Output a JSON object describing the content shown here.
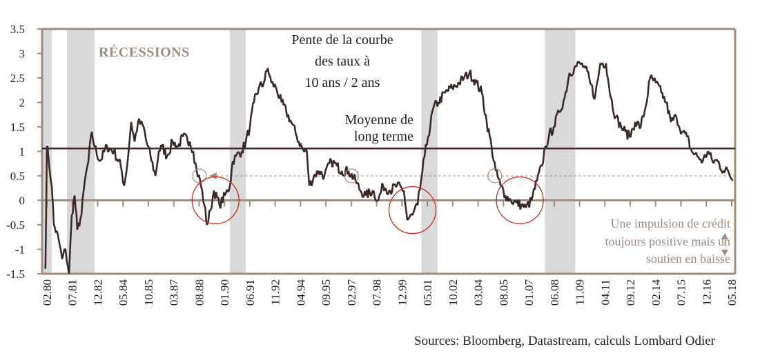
{
  "chart_data": {
    "type": "line",
    "title": "Pente de la courbe des taux à 10 ans / 2 ans",
    "title_lines": [
      "Pente de la courbe",
      "des taux à",
      "10 ans / 2 ans"
    ],
    "recession_label": "RÉCESSIONS",
    "mean_label_lines": [
      "Moyenne de",
      "long terme"
    ],
    "mean_value": 1.06,
    "reference_level": 0.5,
    "annotation_lines": [
      "Une impulsion de crédit",
      "toujours positive mais un",
      "soutien en baisse"
    ],
    "source": "Sources: Bloomberg, Datastream, calculs Lombard Odier",
    "ylim": [
      -1.5,
      3.5
    ],
    "xlim": [
      1979.8,
      2018.45
    ],
    "y_ticks": [
      "3.5",
      "3",
      "2.5",
      "2",
      "1.5",
      "1",
      "0.5",
      "0",
      "-0.5",
      "-1",
      "-1.5"
    ],
    "x_ticks": [
      "02.80",
      "07.81",
      "12.82",
      "05.84",
      "10.85",
      "03.87",
      "08.88",
      "01.90",
      "06.91",
      "11.92",
      "04.94",
      "09.95",
      "02.97",
      "07.98",
      "12.99",
      "05.01",
      "10.02",
      "03.04",
      "08.05",
      "01.07",
      "06.08",
      "11.09",
      "04.11",
      "09.12",
      "02.14",
      "07.15",
      "12.16",
      "05.18"
    ],
    "recessions": [
      [
        1979.8,
        1980.35
      ],
      [
        1981.2,
        1982.75
      ],
      [
        1990.3,
        1991.2
      ],
      [
        2001.0,
        2001.9
      ],
      [
        2007.9,
        2009.6
      ]
    ],
    "highlight_points": [
      1988.6,
      1997.1,
      2005.1
    ],
    "highlight_troughs": [
      [
        1989.5,
        0.0
      ],
      [
        2000.5,
        -0.2
      ],
      [
        2006.5,
        0.0
      ]
    ],
    "series": [
      {
        "name": "Pente 10 ans / 2 ans",
        "color": "#3a2a28",
        "points": [
          [
            1980.0,
            -1.4
          ],
          [
            1980.08,
            1.1
          ],
          [
            1980.16,
            0.9
          ],
          [
            1980.35,
            0.3
          ],
          [
            1980.47,
            -0.5
          ],
          [
            1980.74,
            -0.8
          ],
          [
            1980.93,
            -1.2
          ],
          [
            1981.12,
            -1.0
          ],
          [
            1981.32,
            -1.5
          ],
          [
            1981.47,
            -0.3
          ],
          [
            1981.63,
            0.1
          ],
          [
            1981.78,
            -0.6
          ],
          [
            1982.01,
            -0.3
          ],
          [
            1982.2,
            0.4
          ],
          [
            1982.4,
            0.8
          ],
          [
            1982.59,
            1.4
          ],
          [
            1982.74,
            1.1
          ],
          [
            1983.05,
            0.8
          ],
          [
            1983.44,
            1.1
          ],
          [
            1983.82,
            1.0
          ],
          [
            1984.21,
            0.7
          ],
          [
            1984.4,
            0.3
          ],
          [
            1984.59,
            0.8
          ],
          [
            1984.79,
            1.6
          ],
          [
            1984.98,
            1.2
          ],
          [
            1985.17,
            1.6
          ],
          [
            1985.48,
            1.5
          ],
          [
            1985.64,
            1.2
          ],
          [
            1985.87,
            0.9
          ],
          [
            1986.14,
            0.5
          ],
          [
            1986.33,
            1.0
          ],
          [
            1986.52,
            1.1
          ],
          [
            1986.79,
            0.9
          ],
          [
            1987.1,
            1.2
          ],
          [
            1987.41,
            1.1
          ],
          [
            1987.68,
            1.3
          ],
          [
            1988.06,
            1.2
          ],
          [
            1988.26,
            1.0
          ],
          [
            1988.45,
            0.6
          ],
          [
            1988.64,
            0.4
          ],
          [
            1988.88,
            -0.1
          ],
          [
            1989.03,
            -0.5
          ],
          [
            1989.22,
            -0.2
          ],
          [
            1989.41,
            0.2
          ],
          [
            1989.72,
            -0.1
          ],
          [
            1990.03,
            0.1
          ],
          [
            1990.3,
            0.3
          ],
          [
            1990.46,
            0.8
          ],
          [
            1990.65,
            0.9
          ],
          [
            1990.96,
            1.0
          ],
          [
            1991.19,
            1.2
          ],
          [
            1991.42,
            1.5
          ],
          [
            1991.65,
            2.0
          ],
          [
            1991.92,
            2.3
          ],
          [
            1992.19,
            2.4
          ],
          [
            1992.42,
            2.7
          ],
          [
            1992.62,
            2.4
          ],
          [
            1992.88,
            2.3
          ],
          [
            1993.19,
            2.0
          ],
          [
            1993.46,
            1.8
          ],
          [
            1993.73,
            1.6
          ],
          [
            1994.04,
            1.3
          ],
          [
            1994.43,
            1.0
          ],
          [
            1994.6,
            1.0
          ],
          [
            1994.74,
            0.3
          ],
          [
            1995.0,
            0.5
          ],
          [
            1995.28,
            0.6
          ],
          [
            1995.58,
            0.5
          ],
          [
            1995.97,
            0.8
          ],
          [
            1996.28,
            0.7
          ],
          [
            1996.55,
            0.6
          ],
          [
            1996.93,
            0.6
          ],
          [
            1997.32,
            0.4
          ],
          [
            1997.59,
            0.2
          ],
          [
            1997.9,
            0.1
          ],
          [
            1998.28,
            0.2
          ],
          [
            1998.59,
            0.0
          ],
          [
            1998.86,
            0.3
          ],
          [
            1999.25,
            0.2
          ],
          [
            1999.63,
            0.3
          ],
          [
            2000.02,
            0.2
          ],
          [
            2000.21,
            -0.4
          ],
          [
            2000.52,
            -0.3
          ],
          [
            2000.79,
            -0.1
          ],
          [
            2000.98,
            0.4
          ],
          [
            2001.18,
            0.9
          ],
          [
            2001.37,
            1.3
          ],
          [
            2001.68,
            1.9
          ],
          [
            2001.95,
            2.0
          ],
          [
            2002.33,
            2.2
          ],
          [
            2002.72,
            2.3
          ],
          [
            2003.11,
            2.4
          ],
          [
            2003.38,
            2.5
          ],
          [
            2003.69,
            2.6
          ],
          [
            2004.07,
            2.4
          ],
          [
            2004.38,
            2.2
          ],
          [
            2004.65,
            1.6
          ],
          [
            2004.92,
            1.1
          ],
          [
            2005.15,
            0.6
          ],
          [
            2005.42,
            0.3
          ],
          [
            2005.69,
            0.1
          ],
          [
            2006.0,
            0.0
          ],
          [
            2006.31,
            -0.05
          ],
          [
            2006.58,
            -0.1
          ],
          [
            2006.84,
            -0.15
          ],
          [
            2007.15,
            0.0
          ],
          [
            2007.46,
            0.4
          ],
          [
            2007.73,
            0.7
          ],
          [
            2007.92,
            1.1
          ],
          [
            2008.12,
            1.3
          ],
          [
            2008.39,
            1.5
          ],
          [
            2008.7,
            1.8
          ],
          [
            2009.0,
            2.1
          ],
          [
            2009.27,
            2.6
          ],
          [
            2009.54,
            2.7
          ],
          [
            2009.85,
            2.8
          ],
          [
            2010.16,
            2.7
          ],
          [
            2010.43,
            2.4
          ],
          [
            2010.7,
            2.1
          ],
          [
            2011.0,
            2.8
          ],
          [
            2011.31,
            2.8
          ],
          [
            2011.58,
            2.1
          ],
          [
            2011.86,
            1.7
          ],
          [
            2012.16,
            1.5
          ],
          [
            2012.4,
            1.4
          ],
          [
            2012.63,
            1.3
          ],
          [
            2012.94,
            1.6
          ],
          [
            2013.25,
            1.5
          ],
          [
            2013.52,
            1.9
          ],
          [
            2013.78,
            2.5
          ],
          [
            2014.09,
            2.4
          ],
          [
            2014.4,
            2.2
          ],
          [
            2014.67,
            2.0
          ],
          [
            2014.94,
            1.6
          ],
          [
            2015.25,
            1.7
          ],
          [
            2015.56,
            1.4
          ],
          [
            2015.83,
            1.3
          ],
          [
            2016.1,
            1.0
          ],
          [
            2016.41,
            0.9
          ],
          [
            2016.72,
            0.8
          ],
          [
            2016.99,
            1.0
          ],
          [
            2017.26,
            0.8
          ],
          [
            2017.56,
            0.8
          ],
          [
            2017.87,
            0.6
          ],
          [
            2018.14,
            0.6
          ],
          [
            2018.4,
            0.4
          ]
        ]
      }
    ],
    "colors": {
      "axis": "#a08b7d",
      "recession": "#d9d9d9",
      "line": "#3a2a28",
      "circle": "#cc2a1a",
      "annotation": "#a08b7d"
    }
  }
}
